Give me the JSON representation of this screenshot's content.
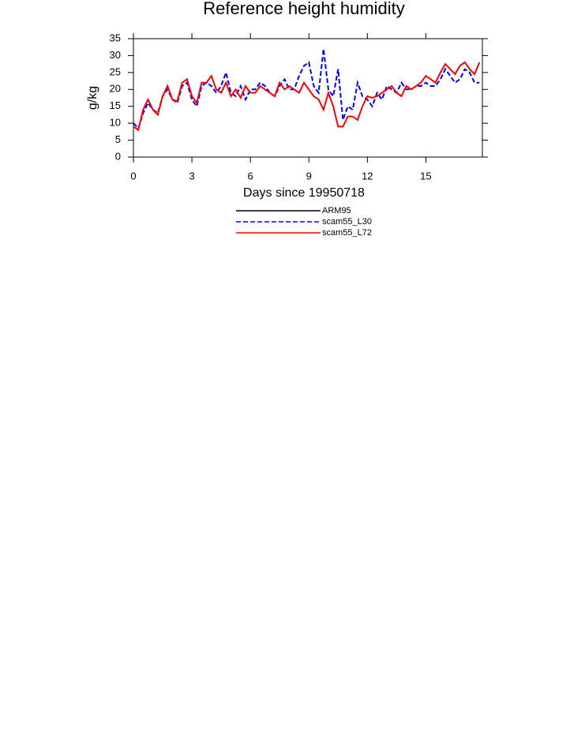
{
  "chart_data": {
    "type": "line",
    "title": "Reference height humidity",
    "xlabel": "Days since 19950718",
    "ylabel": "g/kg",
    "x": [
      0,
      0.25,
      0.5,
      0.75,
      1,
      1.25,
      1.5,
      1.75,
      2,
      2.25,
      2.5,
      2.75,
      3,
      3.25,
      3.5,
      3.75,
      4,
      4.25,
      4.5,
      4.75,
      5,
      5.25,
      5.5,
      5.75,
      6,
      6.25,
      6.5,
      6.75,
      7,
      7.25,
      7.5,
      7.75,
      8,
      8.25,
      8.5,
      8.75,
      9,
      9.25,
      9.5,
      9.75,
      10,
      10.25,
      10.5,
      10.75,
      11,
      11.25,
      11.5,
      11.75,
      12,
      12.25,
      12.5,
      12.75,
      13,
      13.25,
      13.5,
      13.75,
      14,
      14.25,
      14.5,
      14.75,
      15,
      15.25,
      15.5,
      15.75,
      16,
      16.25,
      16.5,
      16.75,
      17,
      17.25,
      17.5,
      17.75
    ],
    "series": [
      {
        "name": "ARM95",
        "color": "#000000",
        "dash": "solid",
        "values": [
          null,
          null,
          null,
          null,
          null,
          null,
          null,
          null,
          null,
          null,
          null,
          null,
          null,
          null,
          null,
          null,
          null,
          null,
          null,
          null,
          null,
          null,
          null,
          null,
          null,
          null,
          null,
          null,
          null,
          null,
          null,
          null,
          null,
          null,
          null,
          null,
          null,
          null,
          null,
          null,
          null,
          null,
          null,
          null,
          null,
          null,
          null,
          null,
          null,
          null,
          null,
          null,
          null,
          null,
          null,
          null,
          null,
          null,
          null,
          null,
          null,
          null,
          null,
          null,
          null,
          null,
          null,
          null,
          null,
          null,
          null,
          null
        ]
      },
      {
        "name": "scam55_L30",
        "color": "#0000ff",
        "dash": "dashed",
        "values": [
          10,
          8.5,
          13,
          16,
          14,
          13,
          18,
          20,
          17,
          16,
          21,
          22,
          17,
          15,
          21,
          22,
          21,
          19,
          21,
          25,
          19,
          18,
          21,
          17,
          20,
          20,
          22,
          21,
          19,
          18,
          21,
          23,
          20,
          20,
          24,
          27,
          28,
          21,
          19,
          32,
          20,
          18,
          26,
          11,
          15,
          14,
          22,
          18,
          17,
          15,
          19,
          17,
          21,
          20,
          19,
          22,
          20,
          20,
          21,
          21,
          22,
          21,
          21,
          23,
          26,
          24,
          22,
          23,
          26,
          25,
          22,
          22
        ]
      },
      {
        "name": "scam55_L72",
        "color": "#ff0000",
        "dash": "solid",
        "values": [
          9,
          8,
          14,
          17,
          14,
          12.5,
          18,
          21,
          17,
          16.5,
          22,
          23,
          18,
          16,
          22,
          22,
          24,
          20,
          19,
          22,
          18,
          20,
          17.5,
          21,
          19,
          19,
          21,
          20,
          19,
          18,
          22,
          20,
          21,
          20,
          19,
          22,
          20,
          18,
          17,
          14,
          19,
          15,
          9,
          9,
          12,
          12,
          11,
          15,
          18,
          17.5,
          18,
          19,
          20,
          21,
          19,
          18,
          21,
          20,
          21,
          22,
          24,
          23,
          22,
          25,
          27.5,
          26,
          24.5,
          27,
          28,
          26,
          24.5,
          28
        ]
      }
    ],
    "xlim": [
      0,
      17.9
    ],
    "xticks": [
      0,
      3,
      6,
      9,
      12,
      15
    ],
    "ylim": [
      0,
      35
    ],
    "yticks": [
      0,
      5,
      10,
      15,
      20,
      25,
      30,
      35
    ]
  }
}
